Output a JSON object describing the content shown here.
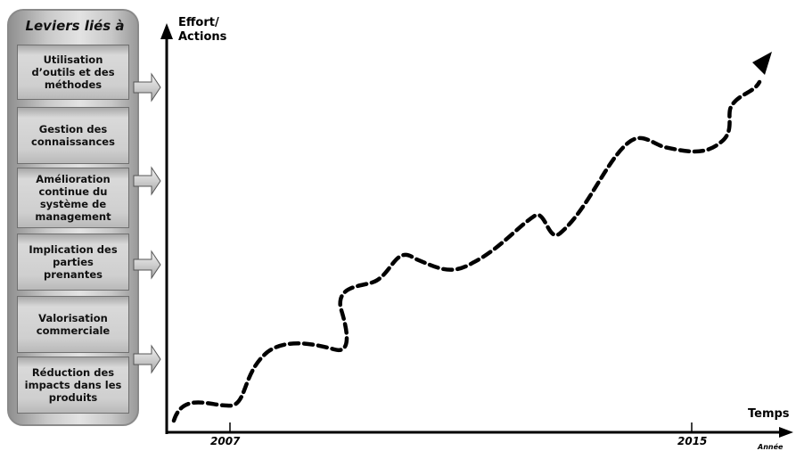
{
  "panel": {
    "title": "Leviers liés à",
    "levers": [
      "Utilisation\nd’outils et des\nméthodes",
      "Gestion des\nconnaissances",
      "Amélioration\ncontinue du\nsystème de\nmanagement",
      "Implication des\nparties\nprenantes",
      "Valorisation\ncommerciale",
      "Réduction des\nimpacts dans les\nproduits"
    ]
  },
  "chart_data": {
    "type": "line",
    "ylabel": "Effort/\nActions",
    "xlabel": "Temps",
    "x_unit": "Année",
    "x_ticks": [
      "2007",
      "2015"
    ],
    "line_style": "dashed",
    "arrow_at_end": true
  }
}
